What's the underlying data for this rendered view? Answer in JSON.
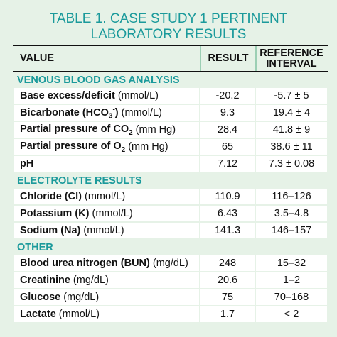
{
  "title": [
    "TABLE 1. CASE STUDY 1 PERTINENT",
    "LABORATORY RESULTS"
  ],
  "header": {
    "value": "VALUE",
    "result": "RESULT",
    "reference": [
      "REFERENCE",
      "INTERVAL"
    ]
  },
  "sections": [
    {
      "title": "VENOUS BLOOD GAS ANALYSIS",
      "rows": [
        {
          "name": [
            {
              "text": "Base excess/deficit"
            }
          ],
          "unit": "(mmol/L)",
          "result": -20.2,
          "reference": "-5.7 ± 5"
        },
        {
          "name": [
            {
              "text": "Bicarbonate (HCO"
            },
            {
              "text": "3",
              "script": "sub"
            },
            {
              "text": "-",
              "script": "super"
            },
            {
              "text": ")"
            }
          ],
          "unit": "(mmol/L)",
          "result": 9.3,
          "reference": "19.4 ± 4"
        },
        {
          "name": [
            {
              "text": "Partial pressure of CO"
            },
            {
              "text": "2",
              "script": "sub"
            }
          ],
          "unit": "(mm Hg)",
          "result": 28.4,
          "reference": "41.8 ± 9"
        },
        {
          "name": [
            {
              "text": "Partial pressure of O"
            },
            {
              "text": "2",
              "script": "sub"
            }
          ],
          "unit": "(mm Hg)",
          "result": 65,
          "reference": "38.6 ± 11"
        },
        {
          "name": [
            {
              "text": "pH"
            }
          ],
          "unit": "",
          "result": 7.12,
          "reference": "7.3 ± 0.08"
        }
      ]
    },
    {
      "title": "ELECTROLYTE RESULTS",
      "rows": [
        {
          "name": [
            {
              "text": "Chloride (Cl)"
            }
          ],
          "unit": "(mmol/L)",
          "result": 110.9,
          "reference": "116–126"
        },
        {
          "name": [
            {
              "text": "Potassium (K)"
            }
          ],
          "unit": "(mmol/L)",
          "result": 6.43,
          "reference": "3.5–4.8"
        },
        {
          "name": [
            {
              "text": "Sodium (Na)"
            }
          ],
          "unit": "(mmol/L)",
          "result": 141.3,
          "reference": "146–157"
        }
      ]
    },
    {
      "title": "OTHER",
      "rows": [
        {
          "name": [
            {
              "text": "Blood urea nitrogen (BUN)"
            }
          ],
          "unit": "(mg/dL)",
          "result": 248,
          "reference": "15–32"
        },
        {
          "name": [
            {
              "text": "Creatinine"
            }
          ],
          "unit": "(mg/dL)",
          "result": 20.6,
          "reference": "1–2"
        },
        {
          "name": [
            {
              "text": "Glucose"
            }
          ],
          "unit": "(mg/dL)",
          "result": 75,
          "reference": "70–168"
        },
        {
          "name": [
            {
              "text": "Lactate"
            }
          ],
          "unit": "(mmol/L)",
          "result": 1.7,
          "reference": "< 2"
        }
      ]
    }
  ]
}
